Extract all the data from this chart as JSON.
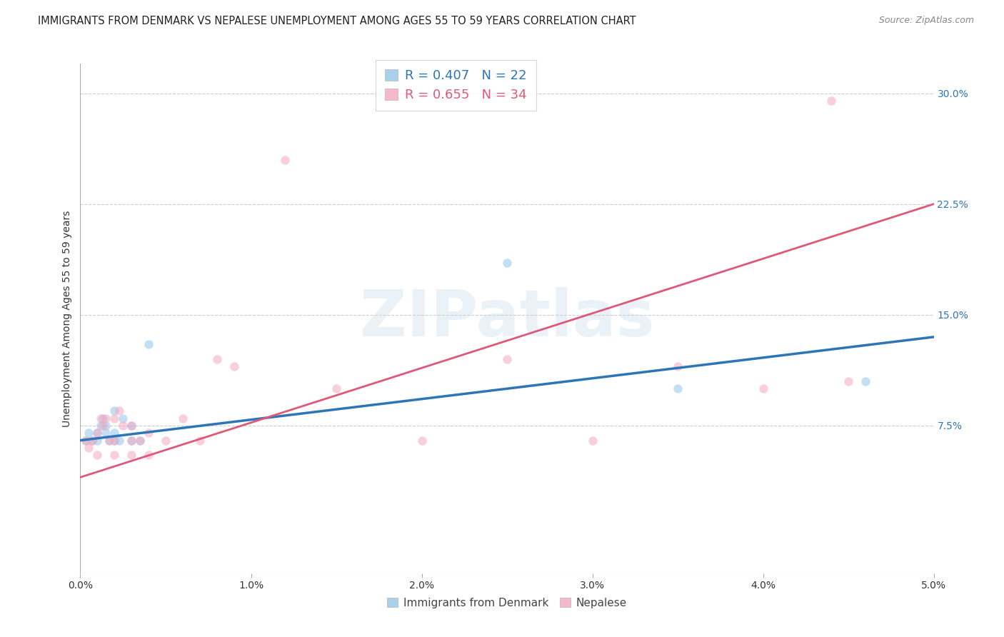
{
  "title": "IMMIGRANTS FROM DENMARK VS NEPALESE UNEMPLOYMENT AMONG AGES 55 TO 59 YEARS CORRELATION CHART",
  "source": "Source: ZipAtlas.com",
  "xlabel": "",
  "ylabel": "Unemployment Among Ages 55 to 59 years",
  "legend_label_1": "Immigrants from Denmark",
  "legend_label_2": "Nepalese",
  "r1": "0.407",
  "n1": "22",
  "r2": "0.655",
  "n2": "34",
  "xlim": [
    0.0,
    0.05
  ],
  "ylim": [
    -0.025,
    0.32
  ],
  "yticks": [
    0.075,
    0.15,
    0.225,
    0.3
  ],
  "ytick_labels": [
    "7.5%",
    "15.0%",
    "22.5%",
    "30.0%"
  ],
  "xticks": [
    0.0,
    0.01,
    0.02,
    0.03,
    0.04,
    0.05
  ],
  "xtick_labels": [
    "0.0%",
    "1.0%",
    "2.0%",
    "3.0%",
    "4.0%",
    "5.0%"
  ],
  "color_blue": "#93c6e8",
  "color_pink": "#f4a8c0",
  "color_blue_line": "#2e75b6",
  "color_pink_line": "#e05878",
  "denmark_x": [
    0.0003,
    0.0005,
    0.0007,
    0.001,
    0.001,
    0.0012,
    0.0013,
    0.0015,
    0.0015,
    0.0017,
    0.002,
    0.002,
    0.002,
    0.0023,
    0.0025,
    0.003,
    0.003,
    0.0035,
    0.004,
    0.025,
    0.035,
    0.046
  ],
  "denmark_y": [
    0.065,
    0.07,
    0.065,
    0.07,
    0.065,
    0.075,
    0.08,
    0.075,
    0.07,
    0.065,
    0.085,
    0.07,
    0.065,
    0.065,
    0.08,
    0.075,
    0.065,
    0.065,
    0.13,
    0.185,
    0.1,
    0.105
  ],
  "nepalese_x": [
    0.0003,
    0.0005,
    0.0007,
    0.001,
    0.001,
    0.0012,
    0.0013,
    0.0015,
    0.0017,
    0.002,
    0.002,
    0.002,
    0.0023,
    0.0025,
    0.003,
    0.003,
    0.003,
    0.0035,
    0.004,
    0.004,
    0.005,
    0.006,
    0.007,
    0.008,
    0.009,
    0.012,
    0.015,
    0.02,
    0.025,
    0.03,
    0.035,
    0.04,
    0.044,
    0.045
  ],
  "nepalese_y": [
    0.065,
    0.06,
    0.065,
    0.07,
    0.055,
    0.08,
    0.075,
    0.08,
    0.065,
    0.08,
    0.065,
    0.055,
    0.085,
    0.075,
    0.075,
    0.065,
    0.055,
    0.065,
    0.07,
    0.055,
    0.065,
    0.08,
    0.065,
    0.12,
    0.115,
    0.255,
    0.1,
    0.065,
    0.12,
    0.065,
    0.115,
    0.1,
    0.295,
    0.105
  ],
  "blue_line_x0": 0.0,
  "blue_line_y0": 0.065,
  "blue_line_x1": 0.05,
  "blue_line_y1": 0.135,
  "pink_line_x0": 0.0,
  "pink_line_y0": 0.04,
  "pink_line_x1": 0.05,
  "pink_line_y1": 0.225,
  "background_color": "#ffffff",
  "title_fontsize": 10.5,
  "axis_label_fontsize": 10,
  "tick_fontsize": 10,
  "marker_size": 80,
  "marker_alpha": 0.55,
  "watermark_text": "ZIPatlas",
  "watermark_color": "#c5d8ea",
  "watermark_fontsize": 65,
  "watermark_alpha": 0.35
}
